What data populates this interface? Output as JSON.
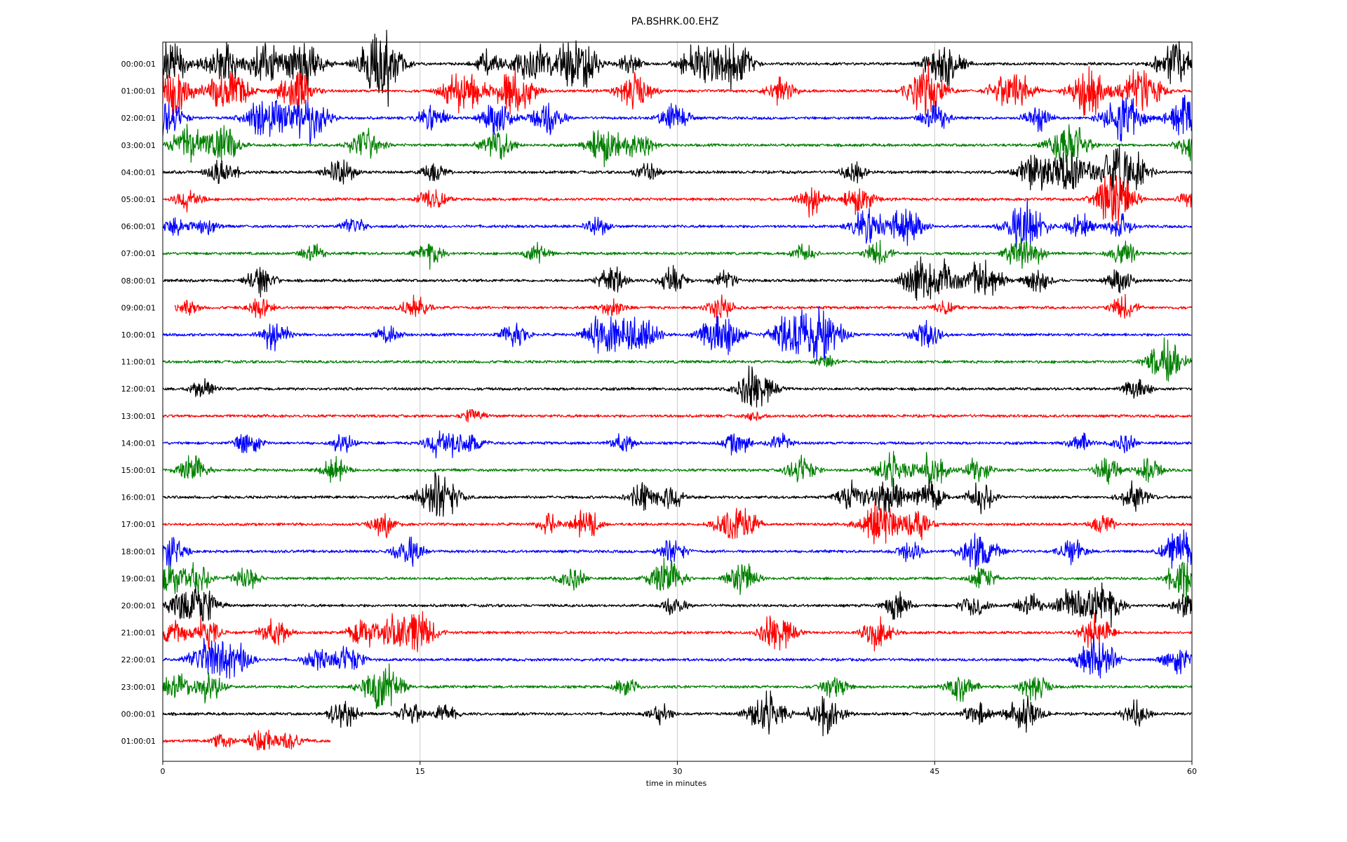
{
  "chart_data": {
    "type": "line",
    "title": "PA.BSHRK.00.EHZ",
    "xlabel": "time in minutes",
    "ylabel": "",
    "xlim": [
      0,
      60
    ],
    "xticks": [
      "0",
      "15",
      "30",
      "45",
      "60"
    ],
    "grid": "vertical gridlines at 15, 30, 45",
    "legend": "none",
    "row_labels": [
      "00:00:01",
      "01:00:01",
      "02:00:01",
      "03:00:01",
      "04:00:01",
      "05:00:01",
      "06:00:01",
      "07:00:01",
      "08:00:01",
      "09:00:01",
      "10:00:01",
      "11:00:01",
      "12:00:01",
      "13:00:01",
      "14:00:01",
      "15:00:01",
      "16:00:01",
      "17:00:01",
      "18:00:01",
      "19:00:01",
      "20:00:01",
      "21:00:01",
      "22:00:01",
      "23:00:01",
      "00:00:01",
      "01:00:01"
    ],
    "colors": [
      "#000000",
      "#ff0000",
      "#0000ff",
      "#008000"
    ],
    "series": [
      {
        "row": 0,
        "end_minute": 60,
        "bursts": [
          [
            0.3,
            1.0
          ],
          [
            3.5,
            0.9
          ],
          [
            6,
            0.8
          ],
          [
            8.2,
            1.0
          ],
          [
            12.5,
            1.0
          ],
          [
            13,
            0.9
          ],
          [
            19,
            0.5
          ],
          [
            21,
            0.5
          ],
          [
            22,
            0.6
          ],
          [
            23.5,
            0.6
          ],
          [
            24.5,
            0.9
          ],
          [
            27.2,
            0.4
          ],
          [
            31.2,
            0.9
          ],
          [
            33.2,
            1.0
          ],
          [
            45.5,
            0.9
          ],
          [
            59,
            0.9
          ]
        ]
      },
      {
        "row": 1,
        "end_minute": 60,
        "bursts": [
          [
            0.5,
            1.0
          ],
          [
            3.8,
            1.0
          ],
          [
            7.8,
            0.9
          ],
          [
            17.5,
            1.0
          ],
          [
            20.5,
            1.0
          ],
          [
            27.5,
            0.8
          ],
          [
            36,
            0.6
          ],
          [
            44.5,
            1.0
          ],
          [
            49.5,
            1.0
          ],
          [
            54,
            1.0
          ],
          [
            57,
            1.0
          ]
        ]
      },
      {
        "row": 2,
        "end_minute": 60,
        "bursts": [
          [
            0.2,
            0.8
          ],
          [
            6,
            1.0
          ],
          [
            8.5,
            1.0
          ],
          [
            15.8,
            0.6
          ],
          [
            19.5,
            0.7
          ],
          [
            22.4,
            0.7
          ],
          [
            29.8,
            0.6
          ],
          [
            45,
            0.6
          ],
          [
            51,
            0.5
          ],
          [
            56,
            1.0
          ],
          [
            59.5,
            0.8
          ]
        ]
      },
      {
        "row": 3,
        "end_minute": 60,
        "bursts": [
          [
            1.5,
            0.8
          ],
          [
            3.5,
            0.8
          ],
          [
            11.8,
            0.7
          ],
          [
            19.5,
            0.7
          ],
          [
            25.8,
            0.8
          ],
          [
            27.8,
            0.6
          ],
          [
            52.8,
            1.0
          ],
          [
            60,
            0.6
          ]
        ]
      },
      {
        "row": 4,
        "end_minute": 60,
        "bursts": [
          [
            3.5,
            0.6
          ],
          [
            10.3,
            0.6
          ],
          [
            15.8,
            0.4
          ],
          [
            28.2,
            0.4
          ],
          [
            40.3,
            0.4
          ],
          [
            51,
            0.9
          ],
          [
            53,
            0.9
          ],
          [
            55.5,
            1.0
          ],
          [
            56.5,
            0.8
          ]
        ]
      },
      {
        "row": 5,
        "end_minute": 60,
        "bursts": [
          [
            1.5,
            0.5
          ],
          [
            15.7,
            0.5
          ],
          [
            37.8,
            0.6
          ],
          [
            40.6,
            0.6
          ],
          [
            55.5,
            1.0
          ],
          [
            60,
            0.4
          ]
        ]
      },
      {
        "row": 6,
        "end_minute": 60,
        "bursts": [
          [
            0.8,
            0.4
          ],
          [
            2.5,
            0.4
          ],
          [
            11.1,
            0.4
          ],
          [
            25.3,
            0.4
          ],
          [
            41.2,
            0.8
          ],
          [
            43.3,
            0.8
          ],
          [
            50.3,
            1.0
          ],
          [
            53.5,
            0.5
          ],
          [
            55.8,
            0.5
          ]
        ]
      },
      {
        "row": 7,
        "end_minute": 60,
        "bursts": [
          [
            8.7,
            0.4
          ],
          [
            15.6,
            0.5
          ],
          [
            21.8,
            0.4
          ],
          [
            37.3,
            0.4
          ],
          [
            41.7,
            0.5
          ],
          [
            50.2,
            0.8
          ],
          [
            56,
            0.5
          ]
        ]
      },
      {
        "row": 8,
        "end_minute": 60,
        "bursts": [
          [
            5.7,
            0.6
          ],
          [
            26.2,
            0.6
          ],
          [
            29.7,
            0.5
          ],
          [
            32.8,
            0.4
          ],
          [
            44,
            0.8
          ],
          [
            45.3,
            0.8
          ],
          [
            47.8,
            0.9
          ],
          [
            51,
            0.5
          ],
          [
            55.8,
            0.5
          ]
        ]
      },
      {
        "row": 9,
        "start_minute": 0.7,
        "end_minute": 60,
        "bursts": [
          [
            1.5,
            0.3
          ],
          [
            5.7,
            0.4
          ],
          [
            14.7,
            0.5
          ],
          [
            26.2,
            0.4
          ],
          [
            32.5,
            0.5
          ],
          [
            45.5,
            0.3
          ],
          [
            56,
            0.5
          ]
        ]
      },
      {
        "row": 10,
        "end_minute": 60,
        "bursts": [
          [
            6.5,
            0.6
          ],
          [
            13.2,
            0.4
          ],
          [
            20.5,
            0.5
          ],
          [
            25.8,
            0.9
          ],
          [
            27.8,
            0.9
          ],
          [
            32.5,
            1.0
          ],
          [
            36.7,
            1.0
          ],
          [
            38.5,
            1.0
          ],
          [
            44.5,
            0.6
          ]
        ]
      },
      {
        "row": 11,
        "end_minute": 60,
        "bursts": [
          [
            58.5,
            0.9
          ],
          [
            38.7,
            0.3
          ]
        ]
      },
      {
        "row": 12,
        "end_minute": 60,
        "bursts": [
          [
            2.3,
            0.4
          ],
          [
            34.5,
            0.9
          ],
          [
            56.8,
            0.5
          ]
        ]
      },
      {
        "row": 13,
        "end_minute": 60,
        "bursts": [
          [
            18.1,
            0.3
          ],
          [
            34.5,
            0.2
          ]
        ]
      },
      {
        "row": 14,
        "end_minute": 60,
        "bursts": [
          [
            5,
            0.5
          ],
          [
            10.5,
            0.4
          ],
          [
            16.3,
            0.7
          ],
          [
            17.9,
            0.5
          ],
          [
            26.8,
            0.4
          ],
          [
            33.5,
            0.5
          ],
          [
            36,
            0.4
          ],
          [
            53.5,
            0.4
          ],
          [
            56,
            0.4
          ]
        ]
      },
      {
        "row": 15,
        "end_minute": 60,
        "bursts": [
          [
            1.7,
            0.6
          ],
          [
            10,
            0.5
          ],
          [
            37.2,
            0.6
          ],
          [
            42.5,
            0.7
          ],
          [
            44.8,
            0.7
          ],
          [
            47.5,
            0.5
          ],
          [
            55.1,
            0.5
          ],
          [
            57.5,
            0.5
          ]
        ]
      },
      {
        "row": 16,
        "end_minute": 60,
        "bursts": [
          [
            16.1,
            1.0
          ],
          [
            28,
            0.6
          ],
          [
            29.7,
            0.5
          ],
          [
            40.2,
            0.6
          ],
          [
            42.3,
            0.8
          ],
          [
            44.7,
            0.6
          ],
          [
            47.7,
            0.6
          ],
          [
            56.7,
            0.6
          ]
        ]
      },
      {
        "row": 17,
        "end_minute": 60,
        "bursts": [
          [
            12.8,
            0.5
          ],
          [
            22.5,
            0.4
          ],
          [
            24.7,
            0.6
          ],
          [
            33.4,
            1.0
          ],
          [
            41.8,
            1.0
          ],
          [
            44,
            0.6
          ],
          [
            54.8,
            0.4
          ]
        ]
      },
      {
        "row": 18,
        "end_minute": 60,
        "bursts": [
          [
            0.2,
            0.8
          ],
          [
            14.3,
            0.6
          ],
          [
            29.7,
            0.5
          ],
          [
            43.5,
            0.5
          ],
          [
            47.6,
            0.9
          ],
          [
            53,
            0.5
          ],
          [
            59.3,
            0.8
          ]
        ]
      },
      {
        "row": 19,
        "end_minute": 60,
        "bursts": [
          [
            0.4,
            0.6
          ],
          [
            2,
            0.6
          ],
          [
            4.8,
            0.5
          ],
          [
            23.8,
            0.5
          ],
          [
            29.3,
            0.8
          ],
          [
            33.8,
            0.6
          ],
          [
            47.8,
            0.5
          ],
          [
            59.5,
            0.8
          ]
        ]
      },
      {
        "row": 20,
        "end_minute": 60,
        "bursts": [
          [
            1,
            0.5
          ],
          [
            2.2,
            0.8
          ],
          [
            29.8,
            0.4
          ],
          [
            42.8,
            0.5
          ],
          [
            47.3,
            0.5
          ],
          [
            50.5,
            0.5
          ],
          [
            53,
            0.7
          ],
          [
            54.8,
            0.9
          ],
          [
            59.8,
            0.6
          ]
        ]
      },
      {
        "row": 21,
        "end_minute": 60,
        "bursts": [
          [
            0.5,
            0.6
          ],
          [
            2.5,
            0.6
          ],
          [
            6.5,
            0.6
          ],
          [
            11.7,
            0.6
          ],
          [
            13.4,
            0.6
          ],
          [
            14.7,
            1.0
          ],
          [
            35.8,
            0.8
          ],
          [
            41.7,
            0.7
          ],
          [
            54.4,
            0.7
          ]
        ]
      },
      {
        "row": 22,
        "end_minute": 60,
        "bursts": [
          [
            2.5,
            0.8
          ],
          [
            4.1,
            0.8
          ],
          [
            9,
            0.5
          ],
          [
            10.8,
            0.6
          ],
          [
            54.5,
            0.9
          ],
          [
            59.2,
            0.6
          ]
        ]
      },
      {
        "row": 23,
        "end_minute": 60,
        "bursts": [
          [
            0.7,
            0.6
          ],
          [
            2.7,
            0.6
          ],
          [
            12.8,
            1.0
          ],
          [
            27,
            0.4
          ],
          [
            39.2,
            0.5
          ],
          [
            46.5,
            0.6
          ],
          [
            50.8,
            0.6
          ]
        ]
      },
      {
        "row": 24,
        "end_minute": 60,
        "bursts": [
          [
            10.5,
            0.6
          ],
          [
            14.5,
            0.5
          ],
          [
            16.5,
            0.4
          ],
          [
            29,
            0.4
          ],
          [
            35.2,
            0.9
          ],
          [
            38.7,
            0.8
          ],
          [
            47.5,
            0.5
          ],
          [
            50.2,
            0.8
          ],
          [
            56.7,
            0.5
          ]
        ]
      },
      {
        "row": 25,
        "end_minute": 9.8,
        "bursts": [
          [
            3.5,
            0.3
          ],
          [
            5.8,
            0.5
          ],
          [
            7.5,
            0.4
          ]
        ]
      }
    ]
  }
}
